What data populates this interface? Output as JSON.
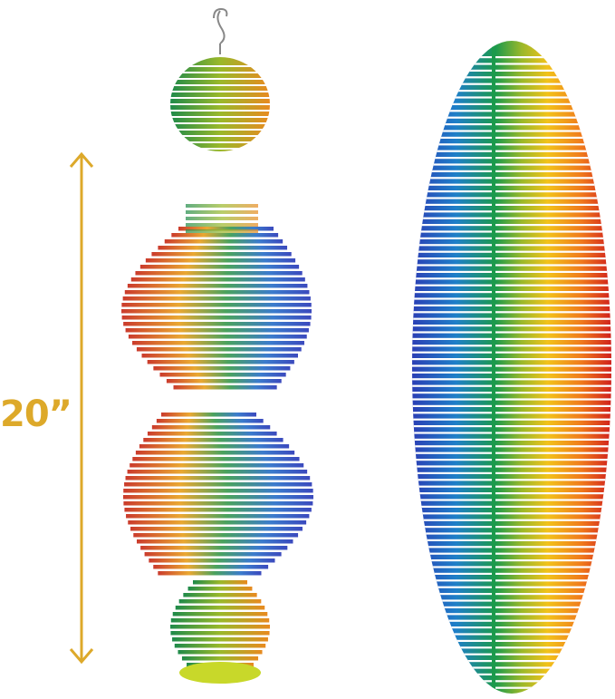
{
  "dimension": {
    "label": "20”",
    "color": "#DDA92A"
  },
  "colors": {
    "blue": "#1f3fc0",
    "green": "#1f9a4a",
    "yellow": "#f2c21a",
    "orange": "#f08a1c",
    "red": "#d8231c"
  }
}
